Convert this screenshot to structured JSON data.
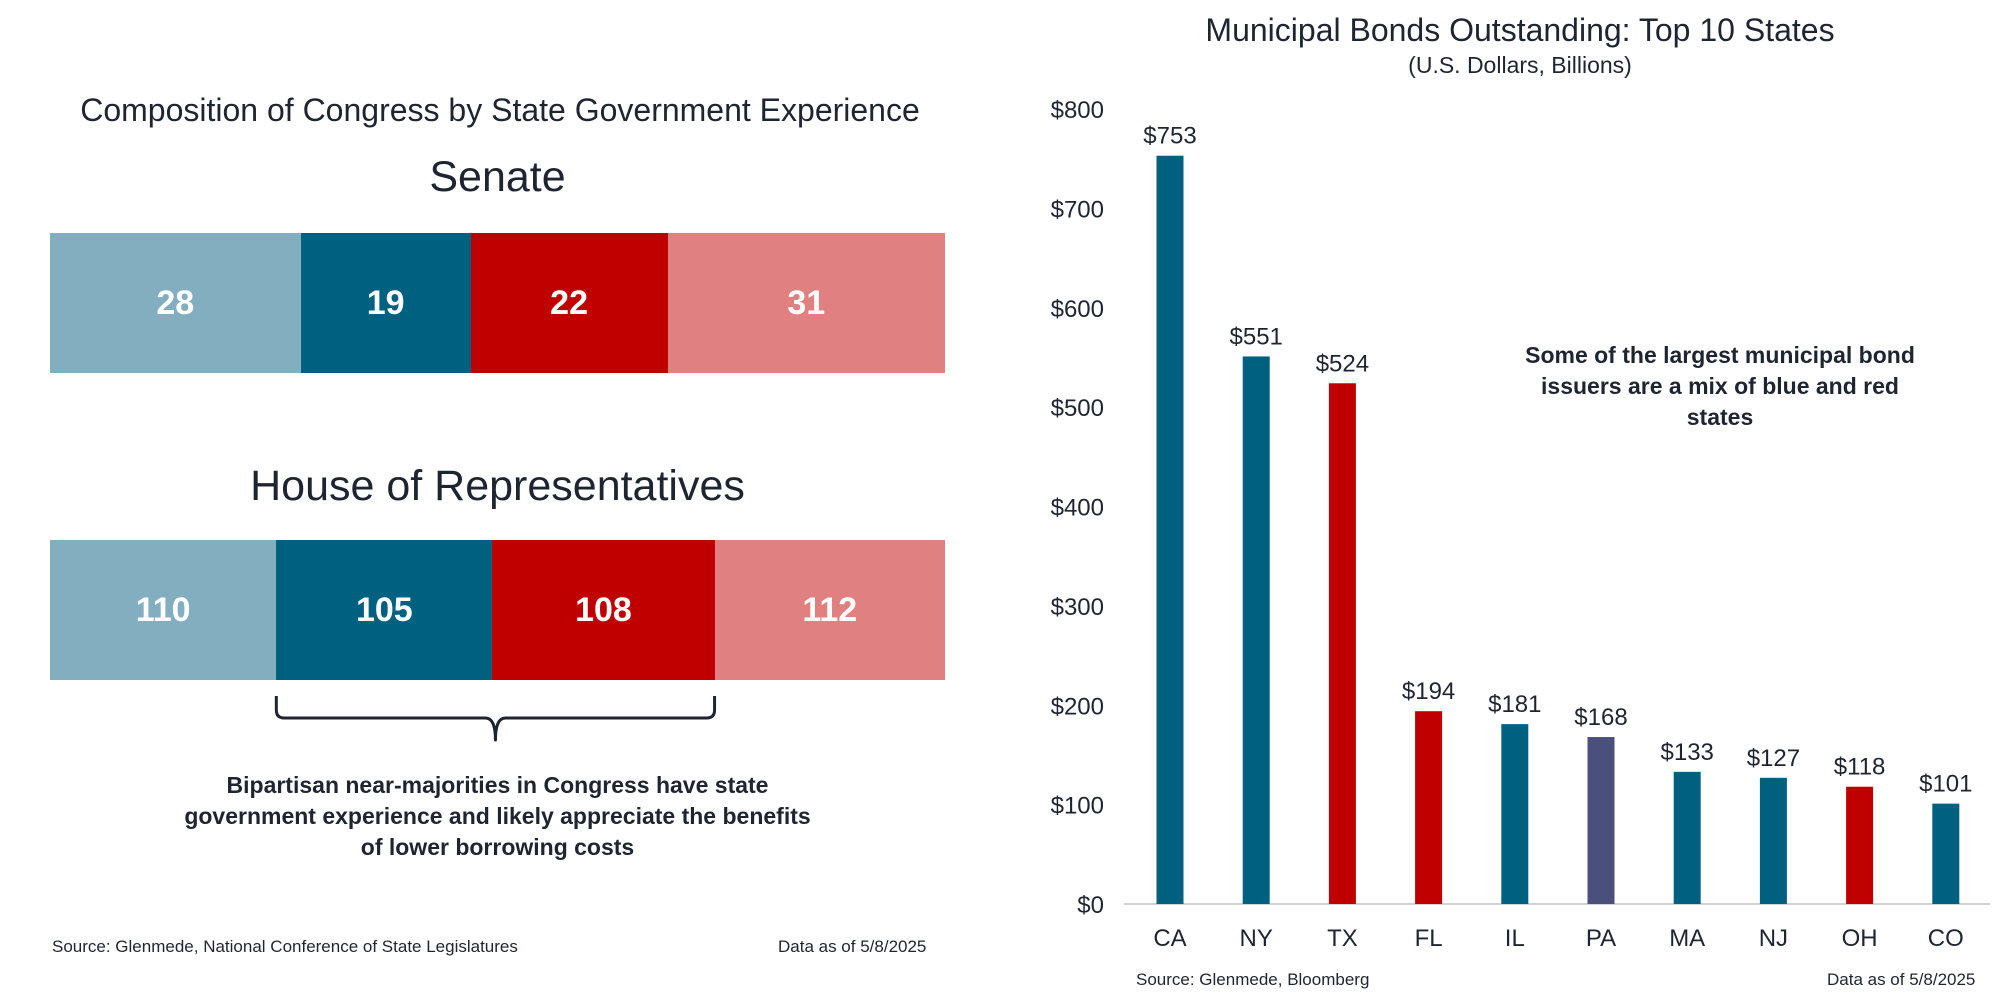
{
  "left_panel": {
    "title": "Composition of Congress by State Government Experience",
    "senate": {
      "title": "Senate",
      "segments": [
        {
          "value": 28,
          "label": "28",
          "color": "#82aec0"
        },
        {
          "value": 19,
          "label": "19",
          "color": "#00607f"
        },
        {
          "value": 22,
          "label": "22",
          "color": "#c00000"
        },
        {
          "value": 31,
          "label": "31",
          "color": "#e08080"
        }
      ]
    },
    "house": {
      "title": "House of Representatives",
      "segments": [
        {
          "value": 110,
          "label": "110",
          "color": "#82aec0"
        },
        {
          "value": 105,
          "label": "105",
          "color": "#00607f"
        },
        {
          "value": 108,
          "label": "108",
          "color": "#c00000"
        },
        {
          "value": 112,
          "label": "112",
          "color": "#e08080"
        }
      ]
    },
    "brace_note": "Bipartisan near-majorities in Congress have state government experience and likely appreciate the benefits of lower borrowing costs",
    "source": "Source: Glenmede, National Conference of State Legislatures",
    "as_of": "Data as of 5/8/2025"
  },
  "right_panel": {
    "title": "Municipal Bonds Outstanding: Top 10 States",
    "subtitle": "(U.S. Dollars, Billions)",
    "annotation": "Some of the largest municipal bond issuers are a mix of blue and red states",
    "source": "Source: Glenmede, Bloomberg",
    "as_of": "Data as of 5/8/2025"
  },
  "chart_data": [
    {
      "type": "bar",
      "title": "Senate",
      "orientation": "horizontal-stacked",
      "values": [
        28,
        19,
        22,
        31
      ],
      "colors": [
        "#82aec0",
        "#00607f",
        "#c00000",
        "#e08080"
      ]
    },
    {
      "type": "bar",
      "title": "House of Representatives",
      "orientation": "horizontal-stacked",
      "values": [
        110,
        105,
        108,
        112
      ],
      "colors": [
        "#82aec0",
        "#00607f",
        "#c00000",
        "#e08080"
      ]
    },
    {
      "type": "bar",
      "title": "Municipal Bonds Outstanding: Top 10 States",
      "subtitle": "(U.S. Dollars, Billions)",
      "categories": [
        "CA",
        "NY",
        "TX",
        "FL",
        "IL",
        "PA",
        "MA",
        "NJ",
        "OH",
        "CO"
      ],
      "values": [
        753,
        551,
        524,
        194,
        181,
        168,
        133,
        127,
        118,
        101
      ],
      "value_labels": [
        "$753",
        "$551",
        "$524",
        "$194",
        "$181",
        "$168",
        "$133",
        "$127",
        "$118",
        "$101"
      ],
      "bar_colors": [
        "#00607f",
        "#00607f",
        "#c00000",
        "#c00000",
        "#00607f",
        "#4b4f7c",
        "#00607f",
        "#00607f",
        "#c00000",
        "#00607f"
      ],
      "ylim": [
        0,
        800
      ],
      "yticks": [
        0,
        100,
        200,
        300,
        400,
        500,
        600,
        700,
        800
      ],
      "ytick_labels": [
        "$0",
        "$100",
        "$200",
        "$300",
        "$400",
        "$500",
        "$600",
        "$700",
        "$800"
      ],
      "grid": false,
      "xlabel": "",
      "ylabel": ""
    }
  ]
}
